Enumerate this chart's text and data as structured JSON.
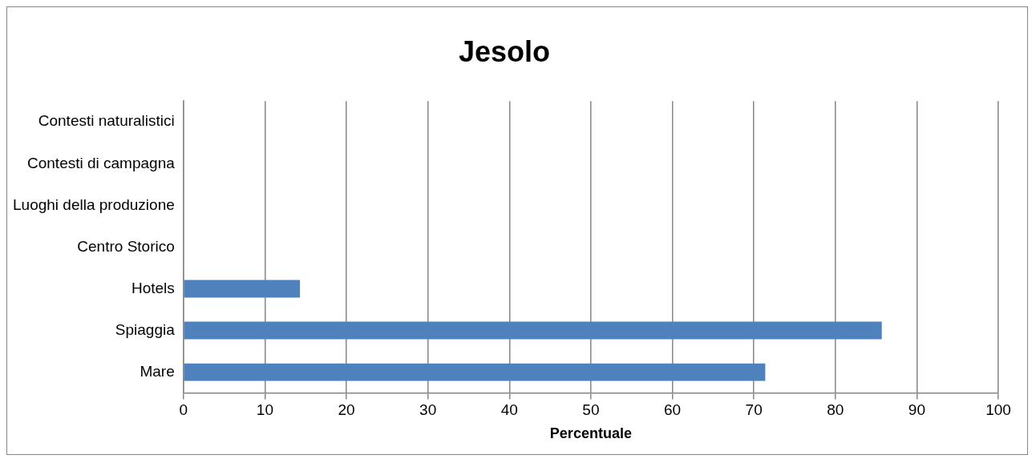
{
  "chart_data": {
    "type": "bar",
    "orientation": "horizontal",
    "title": "Jesolo",
    "xlabel": "Percentuale",
    "categories": [
      "Contesti naturalistici",
      "Contesti di campagna",
      "Luoghi della produzione",
      "Centro Storico",
      "Hotels",
      "Spiaggia",
      "Mare"
    ],
    "values": [
      0,
      0,
      0,
      0,
      14.3,
      85.7,
      71.4
    ],
    "color": "#4f81bd",
    "xlim": [
      0,
      100
    ],
    "xticks": [
      0,
      10,
      20,
      30,
      40,
      50,
      60,
      70,
      80,
      90,
      100
    ],
    "grid": "x",
    "legend": false
  }
}
